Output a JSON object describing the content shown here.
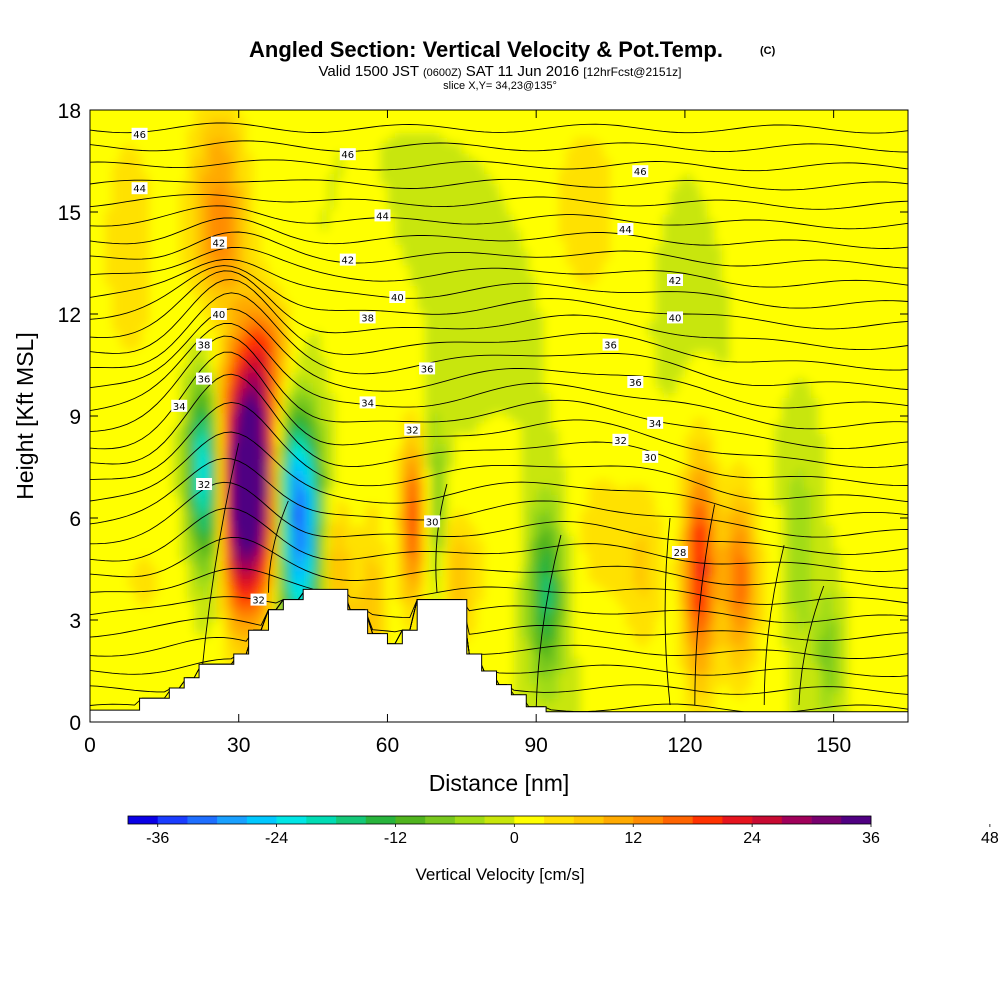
{
  "chart_data": {
    "type": "heatmap",
    "title": "Angled Section: Vertical Velocity & Pot.Temp.",
    "title_mark": "(C)",
    "subtitle": {
      "pre": "Valid 1500 JST",
      "zulu": "(0600Z)",
      "date": "SAT 11 Jun 2016",
      "fcst": "[12hrFcst@2151z]"
    },
    "slice_label": "slice X,Y= 34,23@135°",
    "xlabel": "Distance [nm]",
    "ylabel": "Height [Kft MSL]",
    "xlim": [
      0,
      165
    ],
    "ylim": [
      0,
      18
    ],
    "xticks": [
      0,
      30,
      60,
      90,
      120,
      150
    ],
    "yticks": [
      0,
      3,
      6,
      9,
      12,
      15,
      18
    ],
    "colorbar": {
      "label": "Vertical Velocity [cm/s]",
      "min": -39,
      "step": 3,
      "colors": [
        "#0a00e6",
        "#1a3cff",
        "#1e6eff",
        "#19a0ff",
        "#00c8ff",
        "#00e6e6",
        "#00dcb4",
        "#14c878",
        "#28b43c",
        "#50b41e",
        "#78c81e",
        "#a0dc14",
        "#c8e60a",
        "#ffff00",
        "#ffe100",
        "#ffc800",
        "#ffaa00",
        "#ff8c00",
        "#ff6400",
        "#ff3200",
        "#e6141e",
        "#c80a32",
        "#a0005a",
        "#78006e",
        "#500082"
      ],
      "ticks": [
        -36,
        -24,
        -12,
        0,
        12,
        24,
        36,
        48
      ]
    },
    "isentrope_labels": [
      {
        "value": "46",
        "x": 10,
        "y": 17.3
      },
      {
        "value": "46",
        "x": 52,
        "y": 16.7
      },
      {
        "value": "46",
        "x": 111,
        "y": 16.2
      },
      {
        "value": "44",
        "x": 10,
        "y": 15.7
      },
      {
        "value": "44",
        "x": 59,
        "y": 14.9
      },
      {
        "value": "44",
        "x": 108,
        "y": 14.5
      },
      {
        "value": "42",
        "x": 26,
        "y": 14.1
      },
      {
        "value": "42",
        "x": 52,
        "y": 13.6
      },
      {
        "value": "42",
        "x": 118,
        "y": 13.0
      },
      {
        "value": "40",
        "x": 62,
        "y": 12.5
      },
      {
        "value": "40",
        "x": 26,
        "y": 12.0
      },
      {
        "value": "40",
        "x": 118,
        "y": 11.9
      },
      {
        "value": "38",
        "x": 56,
        "y": 11.9
      },
      {
        "value": "38",
        "x": 23,
        "y": 11.1
      },
      {
        "value": "36",
        "x": 105,
        "y": 11.1
      },
      {
        "value": "36",
        "x": 23,
        "y": 10.1
      },
      {
        "value": "36",
        "x": 68,
        "y": 10.4
      },
      {
        "value": "36",
        "x": 110,
        "y": 10.0
      },
      {
        "value": "34",
        "x": 18,
        "y": 9.3
      },
      {
        "value": "34",
        "x": 56,
        "y": 9.4
      },
      {
        "value": "34",
        "x": 114,
        "y": 8.8
      },
      {
        "value": "32",
        "x": 65,
        "y": 8.6
      },
      {
        "value": "32",
        "x": 107,
        "y": 8.3
      },
      {
        "value": "32",
        "x": 23,
        "y": 7.0
      },
      {
        "value": "32",
        "x": 34,
        "y": 3.6
      },
      {
        "value": "30",
        "x": 113,
        "y": 7.8
      },
      {
        "value": "30",
        "x": 69,
        "y": 5.9
      },
      {
        "value": "28",
        "x": 119,
        "y": 5.0
      }
    ]
  }
}
